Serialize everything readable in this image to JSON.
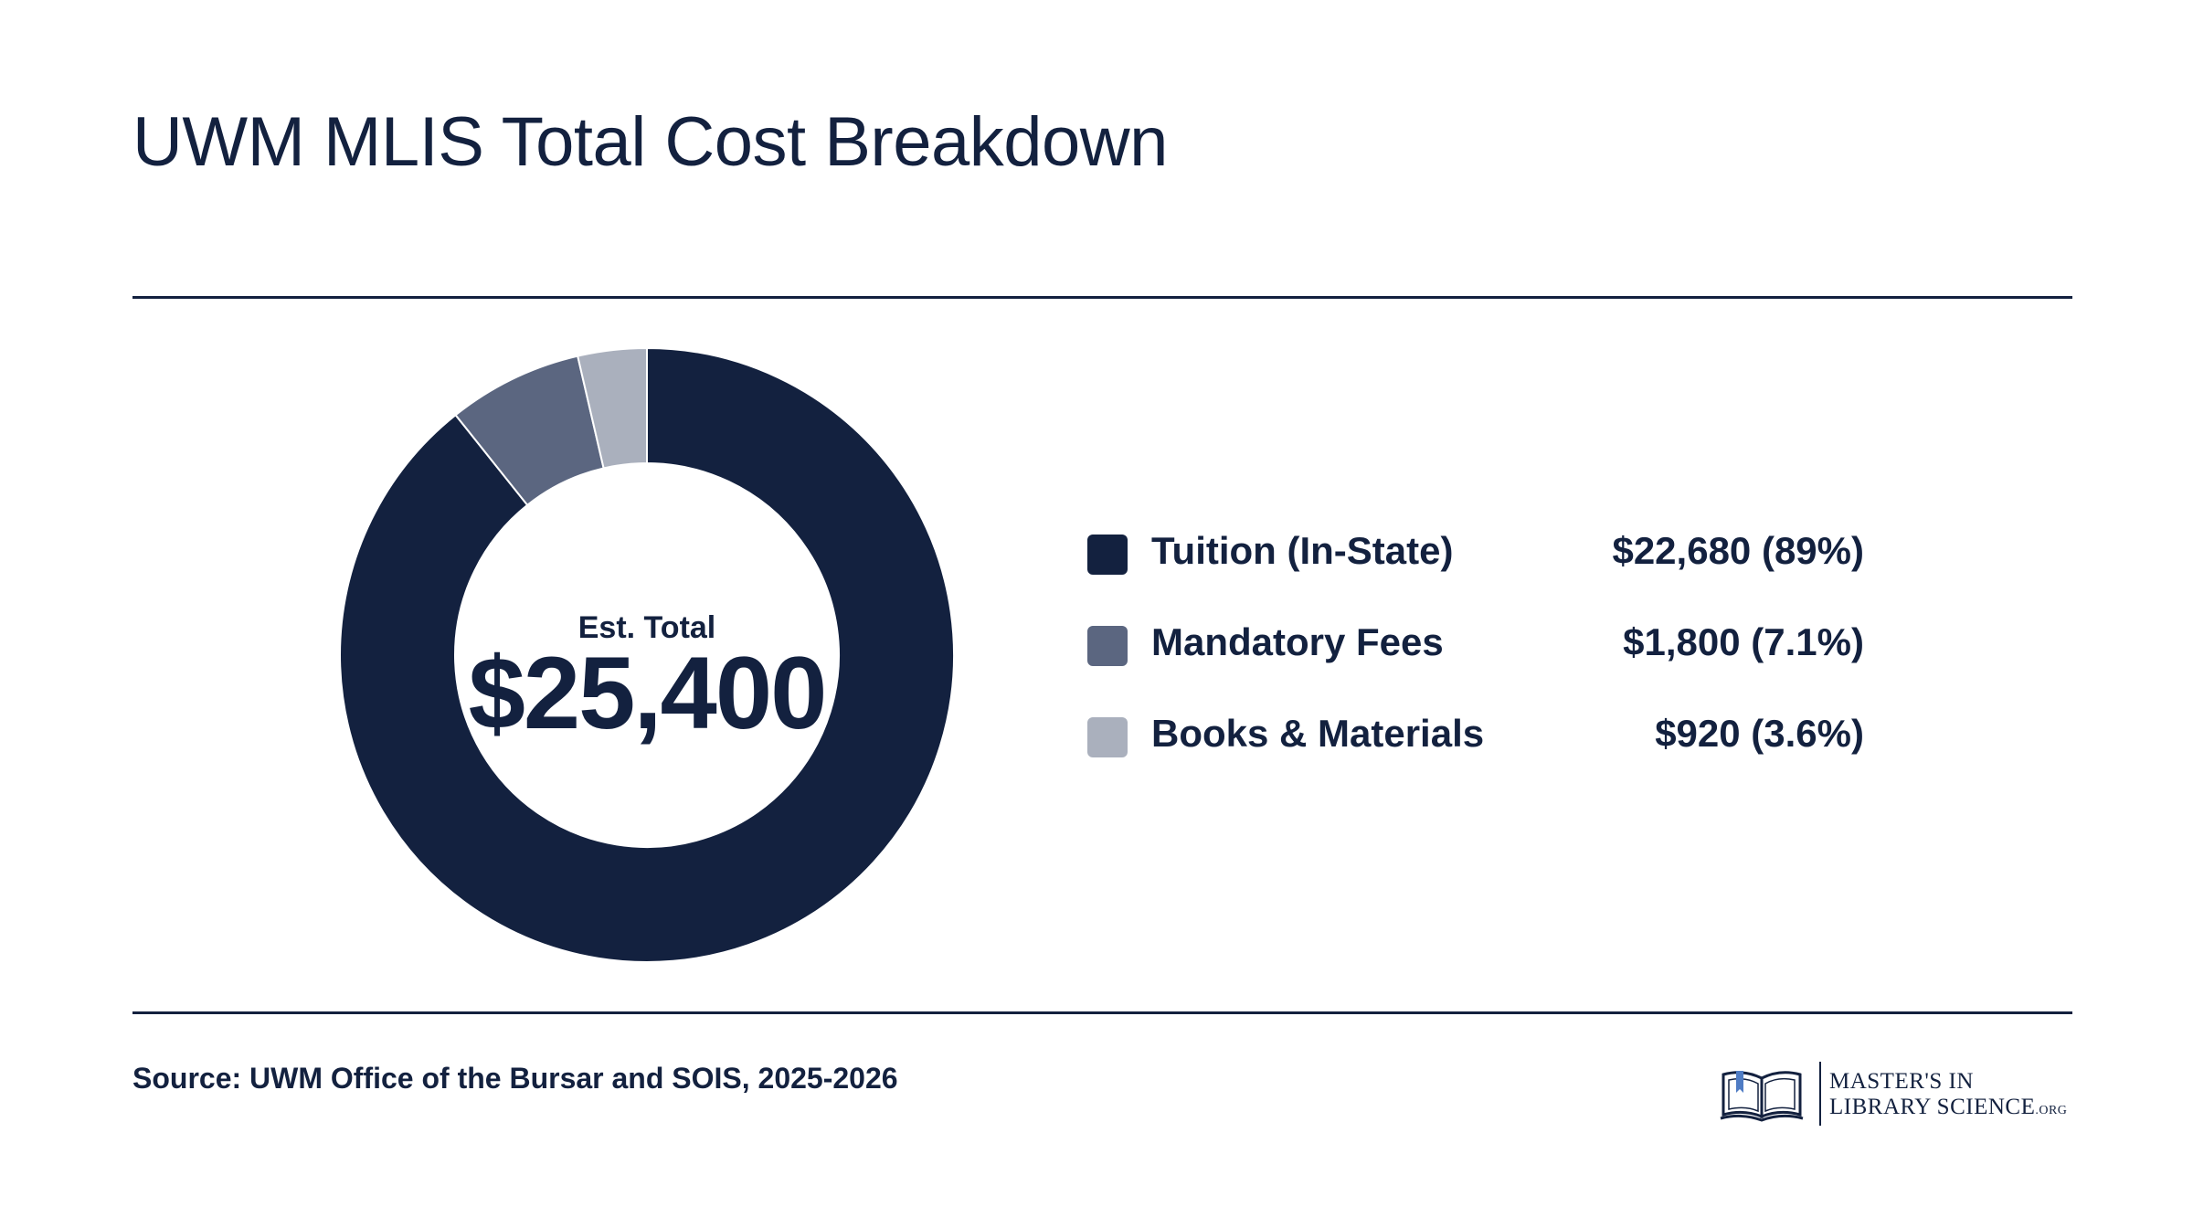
{
  "header": {
    "title": "UWM MLIS Total Cost Breakdown"
  },
  "chart_data": {
    "type": "donut",
    "title": "UWM MLIS Total Cost Breakdown",
    "center": {
      "caption": "Est. Total",
      "total": "$25,400"
    },
    "categories": [
      "Tuition (In-State)",
      "Mandatory Fees",
      "Books & Materials"
    ],
    "values": [
      22680,
      1800,
      920
    ],
    "value_labels": [
      "$22,680 (89%)",
      "$1,800 (7.1%)",
      "$920 (3.6%)"
    ],
    "colors": [
      "#13213f",
      "#5b6680",
      "#aab0bd"
    ],
    "legend_position": "right"
  },
  "footer": {
    "source": "Source: UWM Office of the Bursar and SOIS, 2025-2026",
    "logo_line1": "MASTER'S IN",
    "logo_line2_main": "LIBRARY SCIENCE",
    "logo_line2_small": ".ORG"
  }
}
